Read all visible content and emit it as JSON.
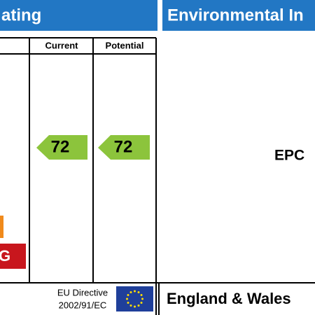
{
  "header": {
    "left_title": "ating",
    "right_title": "Environmental In"
  },
  "table": {
    "columns": [
      "Current",
      "Potential"
    ],
    "current": 72,
    "potential": 72,
    "band_label": "G"
  },
  "footer": {
    "directive_line1": "EU Directive",
    "directive_line2": "2002/91/EC",
    "region": "England & Wales"
  },
  "right_panel": {
    "label": "EPC"
  }
}
